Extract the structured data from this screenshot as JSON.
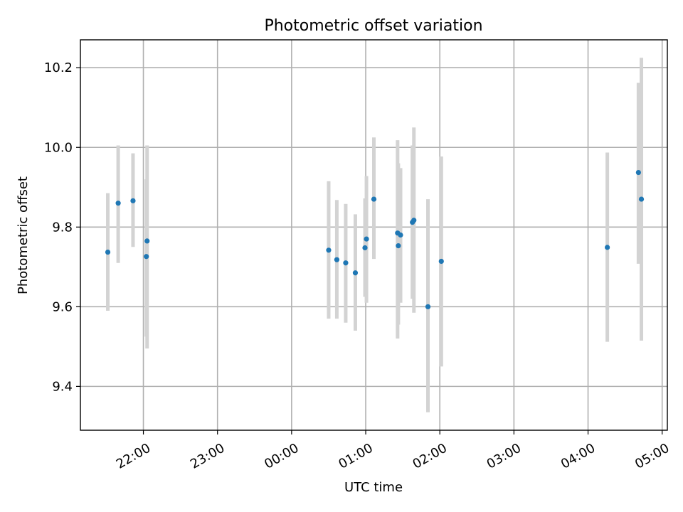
{
  "chart_data": {
    "type": "scatter",
    "title": "Photometric offset variation",
    "xlabel": "UTC time",
    "ylabel": "Photometric offset",
    "grid": true,
    "x_axis": {
      "unit": "hours since 21:00",
      "range": [
        0.15,
        8.07
      ],
      "ticks": [
        {
          "value": 1,
          "label": "22:00"
        },
        {
          "value": 2,
          "label": "23:00"
        },
        {
          "value": 3,
          "label": "00:00"
        },
        {
          "value": 4,
          "label": "01:00"
        },
        {
          "value": 5,
          "label": "02:00"
        },
        {
          "value": 6,
          "label": "03:00"
        },
        {
          "value": 7,
          "label": "04:00"
        },
        {
          "value": 8,
          "label": "05:00"
        }
      ]
    },
    "y_axis": {
      "range": [
        9.29,
        10.27
      ],
      "ticks": [
        {
          "value": 9.4,
          "label": "9.4"
        },
        {
          "value": 9.6,
          "label": "9.6"
        },
        {
          "value": 9.8,
          "label": "9.8"
        },
        {
          "value": 10.0,
          "label": "10.0"
        },
        {
          "value": 10.2,
          "label": "10.2"
        }
      ]
    },
    "colors": {
      "point": "#1f77b4",
      "error_bar": "#d3d3d3",
      "grid": "#b0b0b0"
    },
    "points": [
      {
        "x": 0.52,
        "y": 9.737,
        "lo": 9.59,
        "hi": 9.885
      },
      {
        "x": 0.66,
        "y": 9.86,
        "lo": 9.71,
        "hi": 10.005
      },
      {
        "x": 0.86,
        "y": 9.866,
        "lo": 9.75,
        "hi": 9.985
      },
      {
        "x": 1.04,
        "y": 9.726,
        "lo": 9.525,
        "hi": 9.92
      },
      {
        "x": 1.05,
        "y": 9.765,
        "lo": 9.495,
        "hi": 10.005
      },
      {
        "x": 3.5,
        "y": 9.742,
        "lo": 9.57,
        "hi": 9.915
      },
      {
        "x": 3.61,
        "y": 9.718,
        "lo": 9.57,
        "hi": 9.868
      },
      {
        "x": 3.73,
        "y": 9.71,
        "lo": 9.56,
        "hi": 9.858
      },
      {
        "x": 3.86,
        "y": 9.685,
        "lo": 9.54,
        "hi": 9.832
      },
      {
        "x": 3.99,
        "y": 9.748,
        "lo": 9.625,
        "hi": 9.872
      },
      {
        "x": 4.01,
        "y": 9.77,
        "lo": 9.61,
        "hi": 9.928
      },
      {
        "x": 4.11,
        "y": 9.87,
        "lo": 9.72,
        "hi": 10.025
      },
      {
        "x": 4.43,
        "y": 9.785,
        "lo": 9.52,
        "hi": 10.018
      },
      {
        "x": 4.44,
        "y": 9.753,
        "lo": 9.555,
        "hi": 9.96
      },
      {
        "x": 4.47,
        "y": 9.78,
        "lo": 9.61,
        "hi": 9.948
      },
      {
        "x": 4.63,
        "y": 9.812,
        "lo": 9.62,
        "hi": 10.005
      },
      {
        "x": 4.65,
        "y": 9.817,
        "lo": 9.585,
        "hi": 10.05
      },
      {
        "x": 4.84,
        "y": 9.6,
        "lo": 9.335,
        "hi": 9.87
      },
      {
        "x": 5.02,
        "y": 9.714,
        "lo": 9.45,
        "hi": 9.977
      },
      {
        "x": 7.26,
        "y": 9.749,
        "lo": 9.512,
        "hi": 9.987
      },
      {
        "x": 7.68,
        "y": 9.937,
        "lo": 9.708,
        "hi": 10.162
      },
      {
        "x": 7.72,
        "y": 9.87,
        "lo": 9.515,
        "hi": 10.225
      }
    ]
  }
}
